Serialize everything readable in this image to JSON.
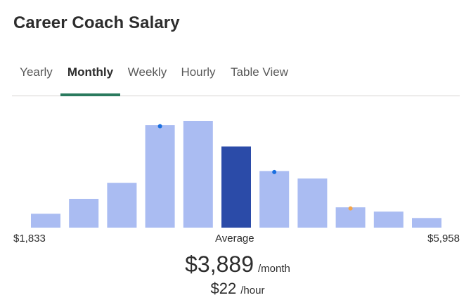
{
  "page": {
    "title": "Career Coach Salary"
  },
  "tabs": [
    {
      "label": "Yearly",
      "active": false
    },
    {
      "label": "Monthly",
      "active": true
    },
    {
      "label": "Weekly",
      "active": false
    },
    {
      "label": "Hourly",
      "active": false
    },
    {
      "label": "Table View",
      "active": false
    }
  ],
  "chart_data": {
    "type": "bar",
    "categories": [
      "1",
      "2",
      "3",
      "4",
      "5",
      "6",
      "7",
      "8",
      "9",
      "10",
      "11"
    ],
    "values": [
      13,
      27,
      42,
      96,
      100,
      76,
      53,
      46,
      19,
      15,
      9
    ],
    "highlight_index": 5,
    "markers": [
      {
        "index": 3,
        "color": "#1a6fe0"
      },
      {
        "index": 6,
        "color": "#1a6fe0"
      },
      {
        "index": 8,
        "color": "#f3a54b"
      }
    ],
    "colors": {
      "bar": "#aabcf2",
      "highlight": "#2b4ba8"
    },
    "x_min_label": "$1,833",
    "x_max_label": "$5,958",
    "center_label": "Average"
  },
  "summary": {
    "monthly_value": "$3,889",
    "monthly_unit": "/month",
    "hourly_value": "$22",
    "hourly_unit": "/hour"
  }
}
